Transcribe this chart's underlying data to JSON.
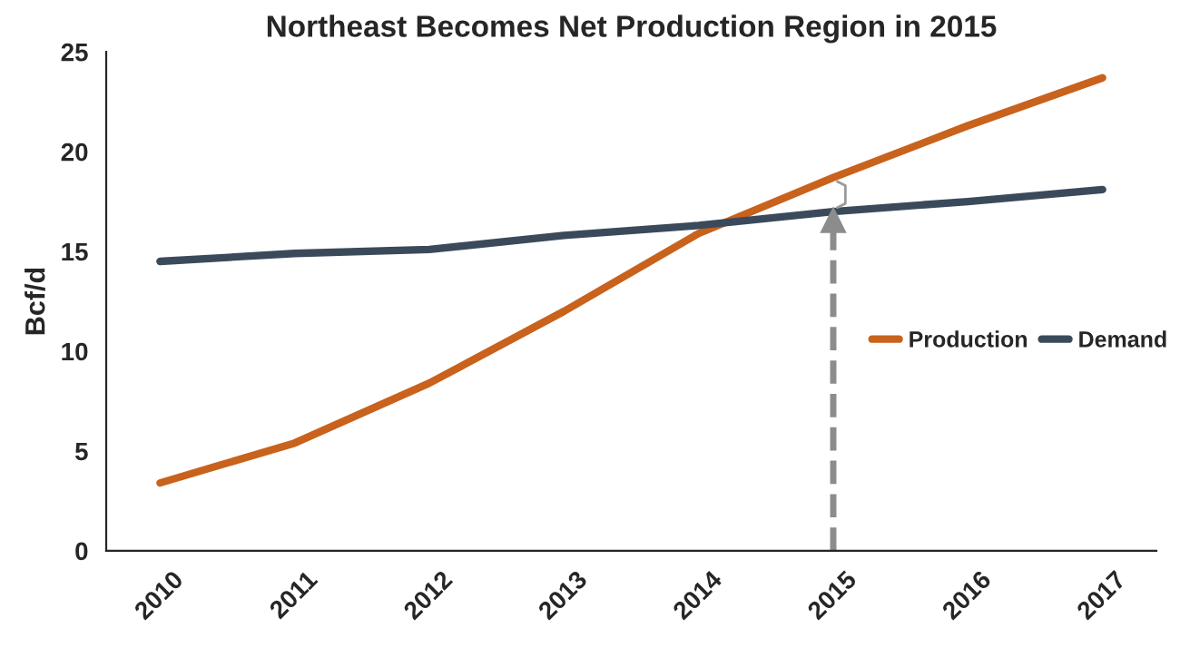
{
  "chart_data": {
    "type": "line",
    "title": "Northeast Becomes Net Production Region in 2015",
    "ylabel": "Bcf/d",
    "categories": [
      "2010",
      "2011",
      "2012",
      "2013",
      "2014",
      "2015",
      "2016",
      "2017"
    ],
    "series": [
      {
        "name": "Production",
        "color": "#c8621c",
        "values": [
          3.4,
          5.4,
          8.4,
          12.0,
          15.9,
          18.7,
          21.3,
          23.7
        ]
      },
      {
        "name": "Demand",
        "color": "#3b4a5a",
        "values": [
          14.5,
          14.9,
          15.1,
          15.8,
          16.3,
          17.0,
          17.5,
          18.1
        ]
      }
    ],
    "ylim": [
      0,
      25
    ],
    "yticks": [
      0,
      5,
      10,
      15,
      20,
      25
    ],
    "grid": false,
    "legend": "right",
    "marker": "none",
    "line_style": "solid",
    "ref_lines": [
      {
        "axis": "x",
        "value": "2015",
        "label": null,
        "color": "#8c8c8c",
        "line_style": "dashed"
      }
    ]
  }
}
